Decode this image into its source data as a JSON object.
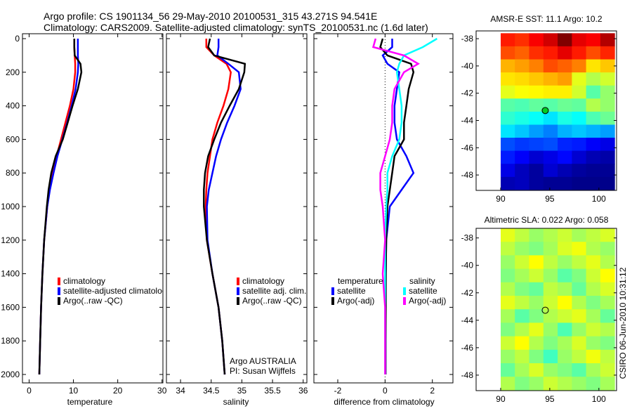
{
  "header": {
    "title_line1": "Argo profile: CS 1901134_56 29-May-2010 20100531_315 43.271S 94.541E",
    "title_line2": "Climatology: CARS2009. Satellite-adjusted climatology: synTS_20100531.nc (1.6d later)"
  },
  "side_stamp": "CSIRO 06-Jun-2010 10:31:12",
  "annotation": {
    "line1": "Argo AUSTRALIA",
    "line2": "PI: Susan Wijffels"
  },
  "colors": {
    "climatology": "#ff0000",
    "satellite": "#0000ff",
    "argo": "#000000",
    "sal_satellite": "#00ffff",
    "sal_argo": "#ff00ff"
  },
  "chart_data": [
    {
      "type": "line",
      "id": "temperature",
      "xlabel": "temperature",
      "ylabel": "",
      "xlim": [
        -1.5,
        30.2
      ],
      "ylim": [
        2050,
        -12
      ],
      "xticks": [
        0,
        10,
        20,
        30
      ],
      "yticks": [
        0,
        200,
        400,
        600,
        800,
        1000,
        1200,
        1400,
        1600,
        1800,
        2000
      ],
      "depth": [
        0,
        50,
        100,
        150,
        200,
        300,
        400,
        500,
        600,
        700,
        800,
        900,
        1000,
        1200,
        1400,
        1600,
        1800,
        2000
      ],
      "series": [
        {
          "name": "climatology",
          "color": "#ff0000",
          "values": [
            10.2,
            10.2,
            10.3,
            10.4,
            10.4,
            10.0,
            9.2,
            8.2,
            7.2,
            6.2,
            5.3,
            4.6,
            4.1,
            3.4,
            3.0,
            2.7,
            2.5,
            2.3
          ]
        },
        {
          "name": "satellite-adjusted climatology",
          "color": "#0000ff",
          "values": [
            11,
            11,
            11,
            11.1,
            11.0,
            10.5,
            9.6,
            8.6,
            7.5,
            6.4,
            5.5,
            4.7,
            4.1,
            3.4,
            3.0,
            2.7,
            2.5,
            2.3
          ]
        },
        {
          "name": "Argo(..raw -QC)",
          "color": "#000000",
          "values": [
            10.2,
            10.2,
            10.3,
            11.6,
            11.8,
            11.0,
            9.8,
            8.7,
            7.6,
            6.0,
            5.0,
            4.4,
            4.0,
            3.4,
            3.0,
            2.7,
            2.5,
            2.3
          ]
        }
      ]
    },
    {
      "type": "line",
      "id": "salinity",
      "xlabel": "salinity",
      "xlim": [
        33.77,
        36.06
      ],
      "ylim": [
        2050,
        -12
      ],
      "xticks": [
        34,
        34.5,
        35,
        35.5,
        36
      ],
      "depth": [
        0,
        50,
        100,
        150,
        200,
        300,
        400,
        500,
        600,
        700,
        800,
        900,
        1000,
        1200,
        1400,
        1600,
        1800,
        2000
      ],
      "series": [
        {
          "name": "climatology",
          "color": "#ff0000",
          "values": [
            34.42,
            34.42,
            34.55,
            34.75,
            34.82,
            34.78,
            34.7,
            34.6,
            34.52,
            34.48,
            34.44,
            34.42,
            34.41,
            34.43,
            34.52,
            34.62,
            34.68,
            34.72
          ]
        },
        {
          "name": "satellite adj. clim.",
          "color": "#0000ff",
          "values": [
            34.62,
            34.62,
            34.6,
            34.78,
            34.95,
            34.98,
            34.88,
            34.76,
            34.66,
            34.58,
            34.52,
            34.46,
            34.43,
            34.44,
            34.52,
            34.62,
            34.68,
            34.72
          ]
        },
        {
          "name": "Argo(..raw -QC)",
          "color": "#000000",
          "values": [
            34.48,
            34.45,
            34.55,
            35.05,
            35.04,
            34.95,
            34.8,
            34.66,
            34.55,
            34.45,
            34.4,
            34.38,
            34.38,
            34.43,
            34.52,
            34.62,
            34.68,
            34.72
          ]
        }
      ]
    },
    {
      "type": "line",
      "id": "difference",
      "xlabel": "difference from climatology",
      "xlim": [
        -3.01,
        2.87
      ],
      "ylim": [
        2050,
        -12
      ],
      "xticks": [
        -2,
        0,
        2
      ],
      "legend_headers": {
        "temperature": "temperature",
        "salinity": "salinity"
      },
      "depth": [
        0,
        50,
        100,
        150,
        200,
        300,
        400,
        500,
        600,
        700,
        800,
        900,
        1000,
        1200,
        1400,
        1600,
        1800,
        2000
      ],
      "series": [
        {
          "name": "satellite",
          "group": "temperature",
          "color": "#0000ff",
          "values": [
            0.3,
            0.3,
            -0.1,
            0.1,
            0.6,
            0.5,
            0.4,
            0.4,
            0.5,
            0.9,
            1.2,
            0.7,
            0.2,
            0.05,
            0.03,
            0.02,
            0.02,
            0.02
          ]
        },
        {
          "name": "Argo(-adj)",
          "group": "temperature",
          "color": "#000000",
          "values": [
            -0.1,
            -0.2,
            0.1,
            1.1,
            1.2,
            1.0,
            0.9,
            0.8,
            0.8,
            0.4,
            0.3,
            0.2,
            0.1,
            0.05,
            0.03,
            0.03,
            0.02,
            0.02
          ]
        },
        {
          "name": "satellite",
          "group": "salinity",
          "color": "#00ffff",
          "values": [
            2.2,
            1.6,
            0.8,
            0.6,
            0.5,
            0.6,
            0.7,
            0.7,
            0.6,
            0.3,
            0.1,
            0.1,
            0.05,
            0,
            0,
            0,
            0,
            0
          ]
        },
        {
          "name": "Argo(-adj)",
          "group": "salinity",
          "color": "#ff00ff",
          "values": [
            -0.4,
            -0.5,
            0.8,
            1.4,
            0.8,
            0.4,
            0.3,
            0.3,
            0.2,
            0,
            -0.2,
            -0.2,
            -0.1,
            0,
            -0.1,
            0,
            0,
            0
          ]
        }
      ]
    },
    {
      "type": "heatmap",
      "id": "sst_map",
      "title": "AMSR-E SST: 11.1  Argo: 10.2",
      "xlim": [
        87.5,
        101.8
      ],
      "ylim": [
        -49.13,
        -37.43
      ],
      "xticks": [
        90,
        95,
        100
      ],
      "yticks": [
        -38,
        -40,
        -42,
        -44,
        -46,
        -48
      ],
      "lon_range": [
        90,
        101.6
      ],
      "lat_range": [
        -37.6,
        -49.1
      ],
      "color_range": [
        4,
        14
      ],
      "argo_position": {
        "lon": 94.541,
        "lat": -43.271
      },
      "grid": [
        [
          12.5,
          12.3,
          12.8,
          13.2,
          14.0,
          13.0,
          12.8,
          13.5
        ],
        [
          12.0,
          11.8,
          12.3,
          12.5,
          13.0,
          12.5,
          12.0,
          12.4
        ],
        [
          11.0,
          11.2,
          11.5,
          12.0,
          11.8,
          11.5,
          10.5,
          10.8
        ],
        [
          10.5,
          10.6,
          10.8,
          11.0,
          11.2,
          10.0,
          9.5,
          9.8
        ],
        [
          10.0,
          10.2,
          10.3,
          10.4,
          10.4,
          9.8,
          8.6,
          9.2
        ],
        [
          8.6,
          8.5,
          8.7,
          8.6,
          8.8,
          8.7,
          9.5,
          9.2
        ],
        [
          8.2,
          8.0,
          7.8,
          7.5,
          8.0,
          7.8,
          8.5,
          8.8
        ],
        [
          7.5,
          7.2,
          6.8,
          6.5,
          7.0,
          7.2,
          7.0,
          6.8
        ],
        [
          6.0,
          5.8,
          5.9,
          6.0,
          5.6,
          5.5,
          5.2,
          5.0
        ],
        [
          5.5,
          5.2,
          4.8,
          5.0,
          5.3,
          4.8,
          4.5,
          4.4
        ],
        [
          5.0,
          4.6,
          4.3,
          4.8,
          4.5,
          4.3,
          4.2,
          4.2
        ],
        [
          4.5,
          4.6,
          4.3,
          4.2,
          4.2,
          4.1,
          4.1,
          4.1
        ]
      ]
    },
    {
      "type": "heatmap",
      "id": "sla_map",
      "title": "Altimetric SLA: 0.022  Argo: 0.058",
      "xlim": [
        87.5,
        101.8
      ],
      "ylim": [
        -49.13,
        -37.3
      ],
      "xticks": [
        90,
        95,
        100
      ],
      "yticks": [
        -38,
        -40,
        -42,
        -44,
        -46,
        -48
      ],
      "lon_range": [
        90,
        101.6
      ],
      "lat_range": [
        -37.3,
        -49.1
      ],
      "color_range": [
        -0.4,
        0.4
      ],
      "argo_position": {
        "lon": 94.541,
        "lat": -43.271
      },
      "grid": [
        [
          0.08,
          0.05,
          0.02,
          0.04,
          0.06,
          0.03,
          0.05,
          0.07
        ],
        [
          0.05,
          0.02,
          0.0,
          0.03,
          0.07,
          0.09,
          0.04,
          0.02
        ],
        [
          0.02,
          0.06,
          0.1,
          0.05,
          0.02,
          0.05,
          0.08,
          0.04
        ],
        [
          0.0,
          0.03,
          0.06,
          0.02,
          -0.03,
          0.0,
          0.06,
          0.1
        ],
        [
          0.04,
          0.0,
          -0.02,
          0.05,
          0.03,
          -0.02,
          0.04,
          0.07
        ],
        [
          0.08,
          0.05,
          0.02,
          0.06,
          0.1,
          0.04,
          0.0,
          0.03
        ],
        [
          0.03,
          -0.03,
          0.0,
          0.04,
          0.06,
          0.08,
          0.03,
          -0.02
        ],
        [
          0.0,
          0.04,
          0.08,
          0.02,
          -0.04,
          0.02,
          0.06,
          0.04
        ],
        [
          0.06,
          0.1,
          0.04,
          0.0,
          0.03,
          0.07,
          0.02,
          0.0
        ],
        [
          0.02,
          0.05,
          0.0,
          -0.05,
          0.02,
          0.05,
          0.09,
          0.05
        ],
        [
          -0.02,
          0.03,
          0.07,
          0.02,
          0.0,
          -0.03,
          0.03,
          0.06
        ],
        [
          0.04,
          0.0,
          0.02,
          0.06,
          0.04,
          0.02,
          0.0,
          0.03
        ]
      ]
    }
  ]
}
